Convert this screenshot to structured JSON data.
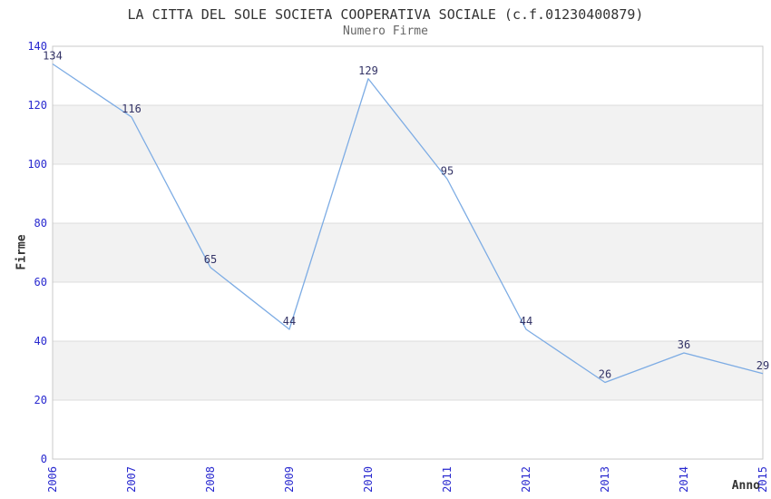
{
  "page": {
    "background": "#ffffff"
  },
  "chart_data": {
    "type": "line",
    "title": "LA CITTA DEL SOLE SOCIETA COOPERATIVA SOCIALE (c.f.01230400879)",
    "subtitle": "Numero Firme",
    "xlabel": "Anno",
    "ylabel": "Firme",
    "categories": [
      "2006",
      "2007",
      "2008",
      "2009",
      "2010",
      "2011",
      "2012",
      "2013",
      "2014",
      "2015"
    ],
    "values": [
      134,
      116,
      65,
      44,
      129,
      95,
      44,
      26,
      36,
      29
    ],
    "ylim": [
      0,
      140
    ],
    "yticks": [
      0,
      20,
      40,
      60,
      80,
      100,
      120,
      140
    ],
    "grid": "alternating-horizontal-bands",
    "legend": "none",
    "x_tick_rotation": -90,
    "colors": {
      "line": "#7DACE4",
      "tick_label": "#2828CF",
      "data_label": "#333366",
      "band": "#F2F2F2",
      "gridline": "#DCDCDC",
      "frame": "#C9C9C9",
      "title": "#333333",
      "subtitle": "#666666",
      "axis_label": "#333333"
    }
  }
}
